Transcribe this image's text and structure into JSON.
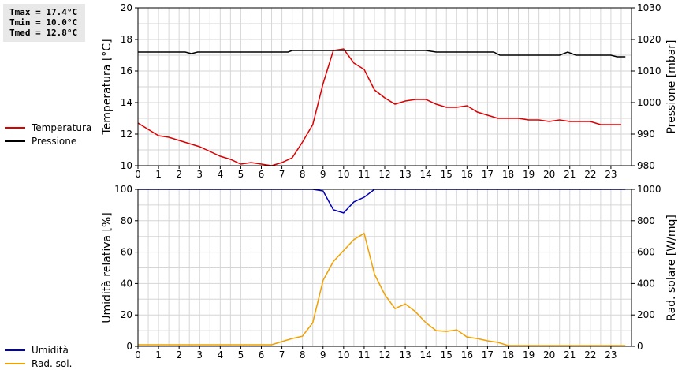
{
  "stats": {
    "tmax": "Tmax = 17.4°C",
    "tmin": "Tmin = 10.0°C",
    "tmed": "Tmed = 12.8°C"
  },
  "legend_top": [
    {
      "label": "Temperatura",
      "color": "#dd0000"
    },
    {
      "label": "Pressione",
      "color": "#000000"
    }
  ],
  "legend_bottom": [
    {
      "label": "Umidità",
      "color": "#0000bb"
    },
    {
      "label": "Rad. sol.",
      "color": "#f0a000"
    }
  ],
  "chart_data": [
    {
      "type": "line",
      "ylabel": "Temperatura [°C]",
      "y2label": "Pressione [mbar]",
      "xlim": [
        0,
        24
      ],
      "ylim": [
        10,
        20
      ],
      "y2lim": [
        980,
        1030
      ],
      "x_ticks": [
        "0",
        "1",
        "2",
        "3",
        "4",
        "5",
        "6",
        "7",
        "8",
        "9",
        "10",
        "11",
        "12",
        "13",
        "14",
        "15",
        "16",
        "17",
        "18",
        "19",
        "20",
        "21",
        "22",
        "23"
      ],
      "y_ticks": [
        "10",
        "12",
        "14",
        "16",
        "18",
        "20"
      ],
      "y2_ticks": [
        "980",
        "990",
        "1000",
        "1010",
        "1020",
        "1030"
      ],
      "grid": true,
      "series": [
        {
          "name": "Temperatura",
          "axis": "left",
          "color": "#dd0000",
          "x": [
            0,
            0.5,
            1,
            1.5,
            2,
            2.5,
            3,
            3.5,
            4,
            4.5,
            5,
            5.5,
            6,
            6.5,
            7,
            7.5,
            8,
            8.5,
            9,
            9.5,
            10,
            10.5,
            11,
            11.5,
            12,
            12.5,
            13,
            13.5,
            14,
            14.5,
            15,
            15.5,
            16,
            16.5,
            17,
            17.5,
            18,
            18.5,
            19,
            19.5,
            20,
            20.5,
            21,
            21.5,
            22,
            22.5,
            23,
            23.5
          ],
          "y": [
            12.7,
            12.3,
            11.9,
            11.8,
            11.6,
            11.4,
            11.2,
            10.9,
            10.6,
            10.4,
            10.1,
            10.2,
            10.1,
            10.0,
            10.2,
            10.5,
            11.5,
            12.6,
            15.2,
            17.3,
            17.4,
            16.5,
            16.1,
            14.8,
            14.3,
            13.9,
            14.1,
            14.2,
            14.2,
            13.9,
            13.7,
            13.7,
            13.8,
            13.4,
            13.2,
            13.0,
            13.0,
            13.0,
            12.9,
            12.9,
            12.8,
            12.9,
            12.8,
            12.8,
            12.8,
            12.6,
            12.6,
            12.6
          ]
        },
        {
          "name": "Pressione",
          "axis": "right",
          "color": "#000000",
          "x": [
            0,
            2.3,
            2.6,
            2.9,
            7.3,
            7.5,
            13.7,
            14,
            14.5,
            17.3,
            17.6,
            20.5,
            20.9,
            21.3,
            23,
            23.3,
            23.7
          ],
          "y": [
            1016,
            1016,
            1015.5,
            1016,
            1016,
            1016.5,
            1016.5,
            1016.5,
            1016,
            1016,
            1015,
            1015,
            1016,
            1015,
            1015,
            1014.5,
            1014.5
          ]
        }
      ]
    },
    {
      "type": "line",
      "ylabel": "Umidità relativa [%]",
      "y2label": "Rad. solare [W/mq]",
      "xlim": [
        0,
        24
      ],
      "ylim": [
        0,
        100
      ],
      "y2lim": [
        0,
        1000
      ],
      "x_ticks": [
        "0",
        "1",
        "2",
        "3",
        "4",
        "5",
        "6",
        "7",
        "8",
        "9",
        "10",
        "11",
        "12",
        "13",
        "14",
        "15",
        "16",
        "17",
        "18",
        "19",
        "20",
        "21",
        "22",
        "23"
      ],
      "y_ticks": [
        "0",
        "20",
        "40",
        "60",
        "80",
        "100"
      ],
      "y2_ticks": [
        "0",
        "200",
        "400",
        "600",
        "800",
        "1000"
      ],
      "grid": true,
      "series": [
        {
          "name": "Umidità",
          "axis": "left",
          "color": "#0000bb",
          "x": [
            0,
            8.5,
            9,
            9.5,
            10,
            10.5,
            11,
            11.5,
            12,
            23.7
          ],
          "y": [
            100,
            100,
            99,
            87,
            85,
            92,
            95,
            100,
            100,
            100
          ]
        },
        {
          "name": "Rad. sol.",
          "axis": "right",
          "color": "#f0a000",
          "x": [
            0,
            6.5,
            7,
            7.5,
            8,
            8.5,
            9,
            9.5,
            10,
            10.5,
            11,
            11.5,
            12,
            12.5,
            13,
            13.5,
            14,
            14.5,
            15,
            15.5,
            16,
            16.5,
            17,
            17.5,
            18,
            23.7
          ],
          "y": [
            10,
            10,
            30,
            50,
            65,
            150,
            420,
            540,
            610,
            680,
            720,
            460,
            330,
            240,
            270,
            220,
            150,
            100,
            95,
            105,
            60,
            50,
            35,
            25,
            5,
            5
          ]
        }
      ]
    }
  ]
}
